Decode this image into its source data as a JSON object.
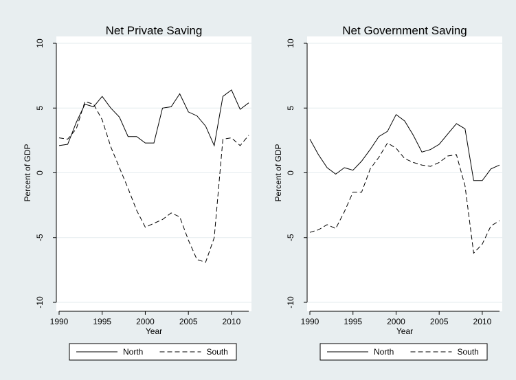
{
  "chart_data": [
    {
      "type": "line",
      "title": "Net Private Saving",
      "xlabel": "Year",
      "ylabel": "Percent of GDP",
      "xlim": [
        1990,
        2012
      ],
      "ylim": [
        -10,
        10
      ],
      "xticks": [
        1990,
        1995,
        2000,
        2005,
        2010
      ],
      "yticks": [
        -10,
        -5,
        0,
        5,
        10
      ],
      "grid": true,
      "legend": "bottom",
      "x": [
        1990,
        1991,
        1992,
        1993,
        1994,
        1995,
        1996,
        1997,
        1998,
        1999,
        2000,
        2001,
        2002,
        2003,
        2004,
        2005,
        2006,
        2007,
        2008,
        2009,
        2010,
        2011,
        2012
      ],
      "series": [
        {
          "name": "North",
          "style": "solid",
          "values": [
            2.1,
            2.2,
            3.9,
            5.3,
            5.1,
            5.9,
            5.0,
            4.3,
            2.8,
            2.8,
            2.3,
            2.3,
            5.0,
            5.1,
            6.1,
            4.7,
            4.4,
            3.6,
            2.1,
            5.9,
            6.4,
            4.9,
            5.4
          ]
        },
        {
          "name": "South",
          "style": "dashed",
          "values": [
            2.7,
            2.6,
            3.4,
            5.5,
            5.3,
            4.1,
            2.0,
            0.4,
            -1.2,
            -2.9,
            -4.2,
            -3.9,
            -3.6,
            -3.1,
            -3.4,
            -5.2,
            -6.7,
            -6.9,
            -5.0,
            2.6,
            2.7,
            2.1,
            2.9
          ]
        }
      ]
    },
    {
      "type": "line",
      "title": "Net Government Saving",
      "xlabel": "Year",
      "ylabel": "Percent of GDP",
      "xlim": [
        1990,
        2012
      ],
      "ylim": [
        -10,
        10
      ],
      "xticks": [
        1990,
        1995,
        2000,
        2005,
        2010
      ],
      "yticks": [
        -10,
        -5,
        0,
        5,
        10
      ],
      "grid": true,
      "legend": "bottom",
      "x": [
        1990,
        1991,
        1992,
        1993,
        1994,
        1995,
        1996,
        1997,
        1998,
        1999,
        2000,
        2001,
        2002,
        2003,
        2004,
        2005,
        2006,
        2007,
        2008,
        2009,
        2010,
        2011,
        2012
      ],
      "series": [
        {
          "name": "North",
          "style": "solid",
          "values": [
            2.6,
            1.4,
            0.4,
            -0.1,
            0.4,
            0.2,
            0.9,
            1.8,
            2.8,
            3.2,
            4.5,
            4.0,
            2.9,
            1.6,
            1.8,
            2.2,
            3.0,
            3.8,
            3.4,
            -0.6,
            -0.6,
            0.3,
            0.6
          ]
        },
        {
          "name": "South",
          "style": "dashed",
          "values": [
            -4.6,
            -4.4,
            -4.0,
            -4.3,
            -3.0,
            -1.5,
            -1.5,
            0.3,
            1.2,
            2.3,
            1.9,
            1.1,
            0.8,
            0.6,
            0.5,
            0.8,
            1.3,
            1.4,
            -1.0,
            -6.2,
            -5.5,
            -4.1,
            -3.7
          ]
        }
      ]
    }
  ]
}
